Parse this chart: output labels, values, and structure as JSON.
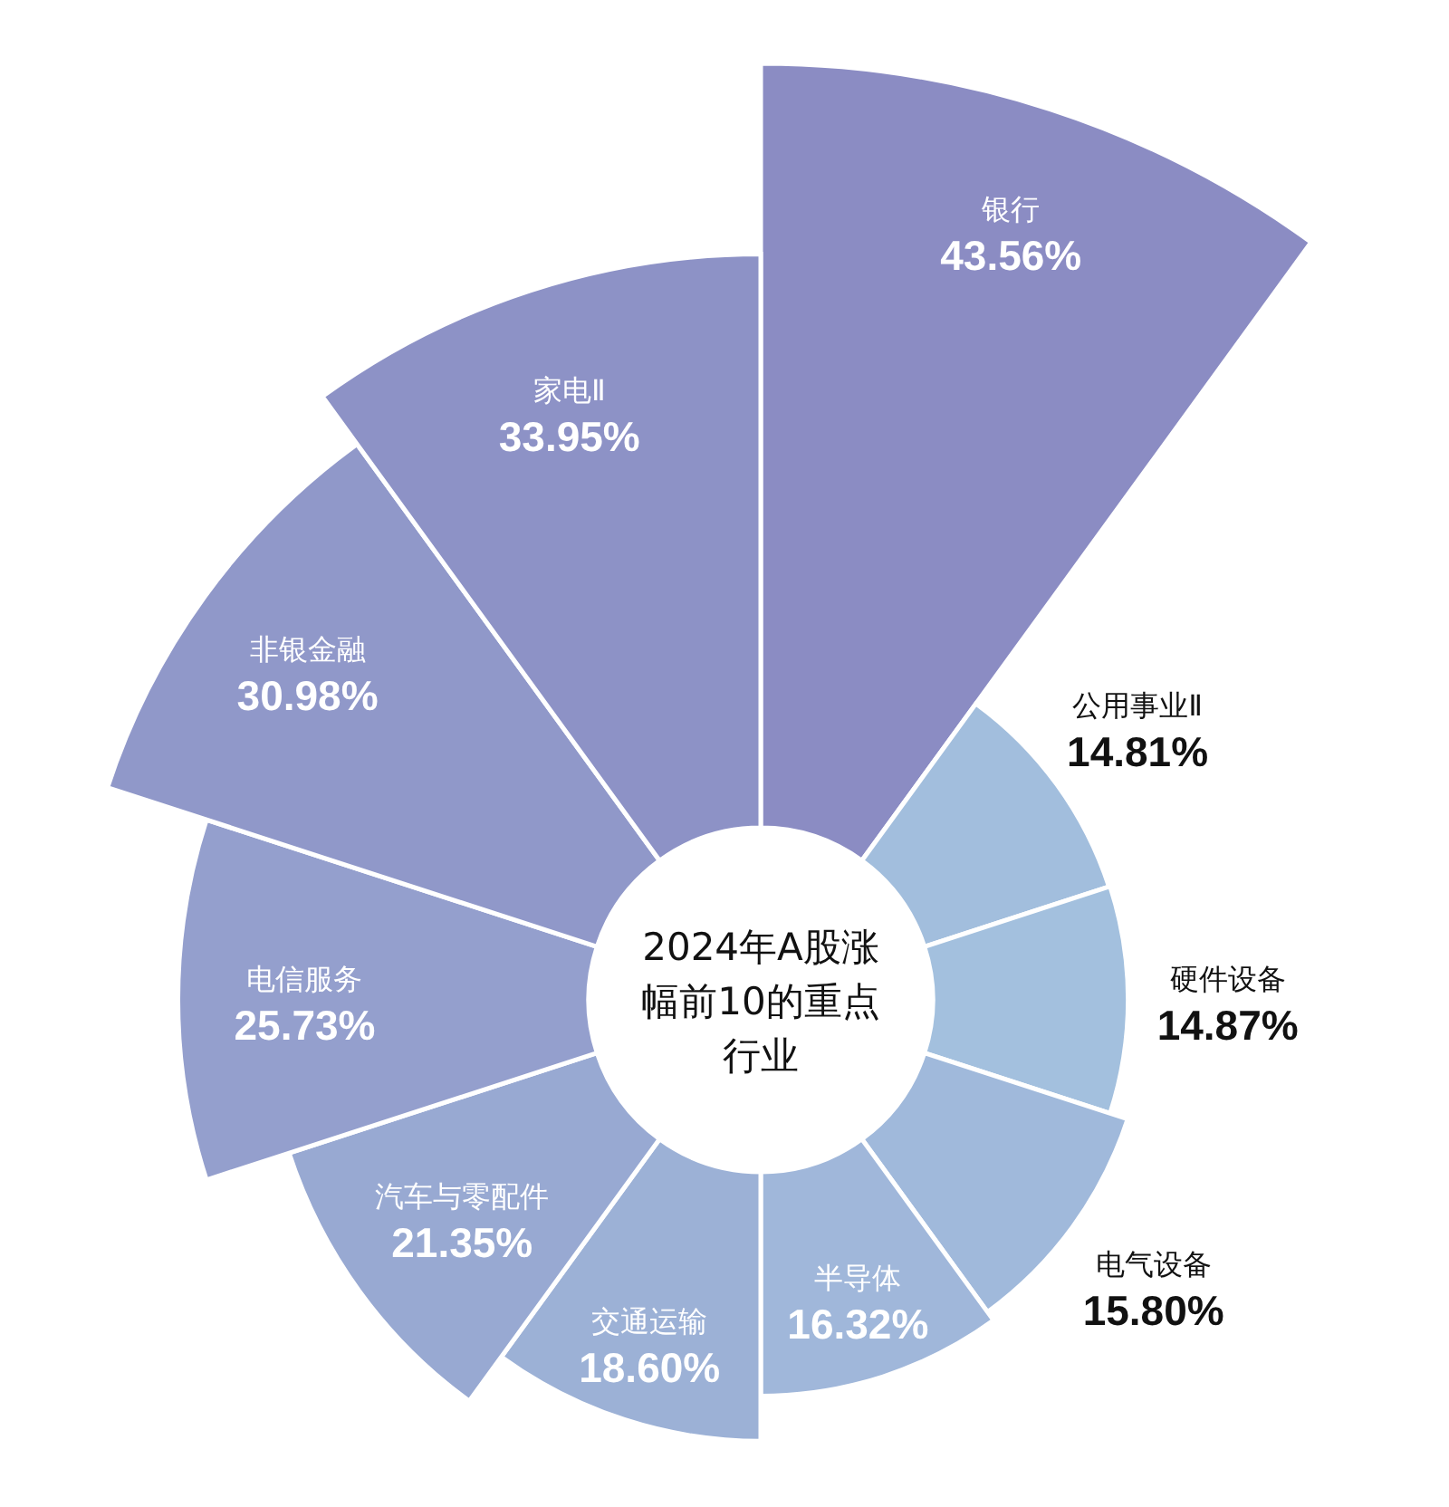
{
  "chart_data": {
    "type": "other",
    "title": "2024年A股涨幅前10的重点行业",
    "categories": [
      "银行",
      "公用事业Ⅱ",
      "硬件设备",
      "电气设备",
      "半导体",
      "交通运输",
      "汽车与零配件",
      "电信服务",
      "非银金融",
      "家电Ⅱ"
    ],
    "values": [
      43.56,
      14.81,
      14.87,
      15.8,
      16.32,
      18.6,
      21.35,
      25.73,
      30.98,
      33.95
    ],
    "value_labels": [
      "43.56%",
      "14.81%",
      "14.87%",
      "15.80%",
      "16.32%",
      "18.60%",
      "21.35%",
      "25.73%",
      "30.98%",
      "33.95%"
    ],
    "colors": [
      "#8b8cc3",
      "#a2bedd",
      "#a3c0de",
      "#a0b9db",
      "#a0b7da",
      "#9cb1d6",
      "#98a9d2",
      "#949fcd",
      "#9098c9",
      "#8d92c6"
    ]
  }
}
